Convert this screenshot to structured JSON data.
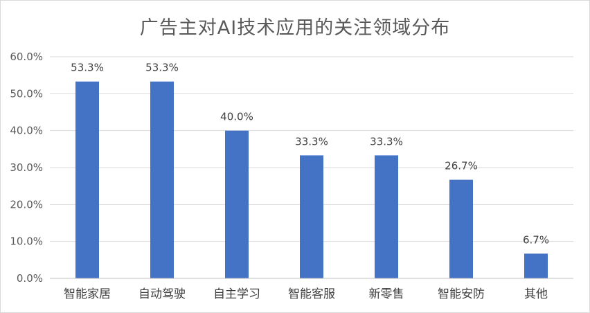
{
  "chart_data": {
    "type": "bar",
    "title": "广告主对AI技术应用的关注领域分布",
    "categories": [
      "智能家居",
      "自动驾驶",
      "自主学习",
      "智能客服",
      "新零售",
      "智能安防",
      "其他"
    ],
    "values": [
      53.3,
      53.3,
      40.0,
      33.3,
      33.3,
      26.7,
      6.7
    ],
    "data_labels": [
      "53.3%",
      "53.3%",
      "40.0%",
      "33.3%",
      "33.3%",
      "26.7%",
      "6.7%"
    ],
    "y_ticks": [
      0,
      10,
      20,
      30,
      40,
      50,
      60
    ],
    "y_tick_labels": [
      "0.0%",
      "10.0%",
      "20.0%",
      "30.0%",
      "40.0%",
      "50.0%",
      "60.0%"
    ],
    "ylim": [
      0,
      60
    ],
    "grid": true,
    "legend": "none",
    "bar_color": "#4472c4",
    "grid_color": "#d9d9d9",
    "xlabel": "",
    "ylabel": ""
  }
}
